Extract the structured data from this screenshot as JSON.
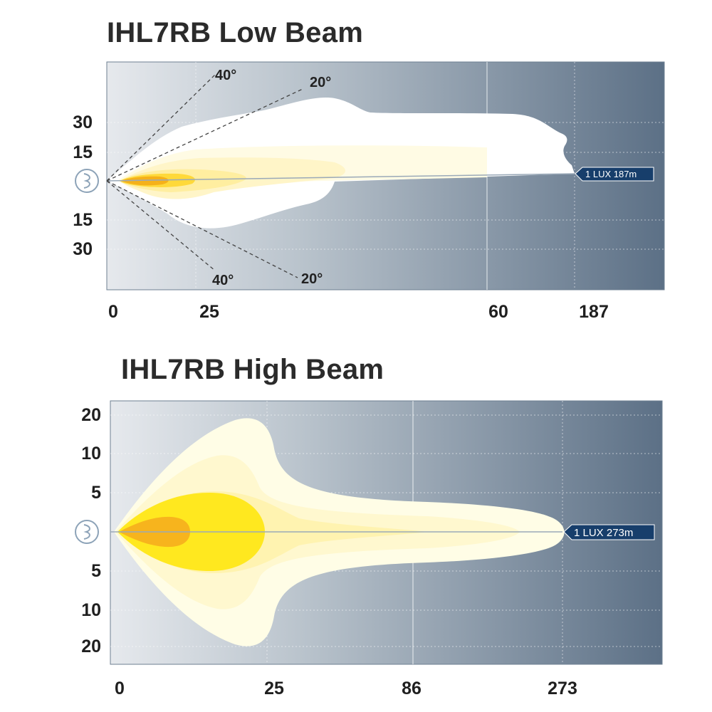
{
  "low_beam": {
    "title": "IHL7RB Low Beam",
    "y_ticks_upper": [
      "30",
      "15"
    ],
    "y_ticks_lower": [
      "15",
      "30"
    ],
    "x_ticks": [
      "0",
      "25",
      "60",
      "187"
    ],
    "angle_labels": {
      "upper_40": "40°",
      "upper_20": "20°",
      "lower_40": "40°",
      "lower_20": "20°"
    },
    "lux_label": "1 LUX 187m"
  },
  "high_beam": {
    "title": "IHL7RB High Beam",
    "y_ticks_upper": [
      "20",
      "10",
      "5"
    ],
    "y_ticks_lower": [
      "5",
      "10",
      "20"
    ],
    "x_ticks": [
      "0",
      "25",
      "86",
      "273"
    ],
    "lux_label": "1 LUX 273m"
  },
  "colors": {
    "bg_left": "#dde2e7",
    "bg_right": "#5f7388",
    "beam_outer": "#fffde8",
    "beam_mid": "#fff6c4",
    "beam_inner": "#ffe94a",
    "beam_core": "#f7b51c",
    "lux_badge": "#173e6b"
  }
}
